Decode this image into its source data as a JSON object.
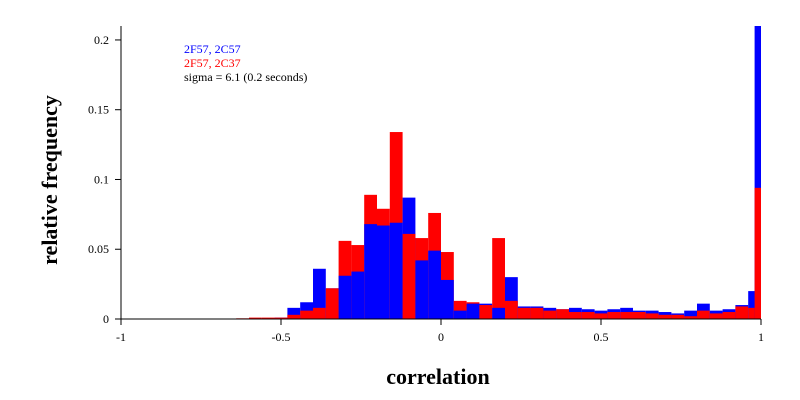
{
  "chart_data": {
    "type": "bar",
    "xlabel": "correlation",
    "ylabel": "relative frequency",
    "xlim": [
      -1,
      1
    ],
    "ylim": [
      0,
      0.21
    ],
    "xticks": [
      -1,
      -0.5,
      0,
      0.5,
      1
    ],
    "xtick_labels": [
      "-1",
      "-0.5",
      "0",
      "0.5",
      "1"
    ],
    "yticks": [
      0,
      0.05,
      0.1,
      0.15,
      0.2
    ],
    "ytick_labels": [
      "0",
      "0.05",
      "0.1",
      "0.15",
      "0.2"
    ],
    "grid": false,
    "legend_position": "top-left",
    "legend": [
      {
        "label": "2F57, 2C57",
        "color": "#0000ff"
      },
      {
        "label": "2F57, 2C37",
        "color": "#ff0000"
      }
    ],
    "annotation": "sigma = 6.1 (0.2 seconds)",
    "bin_width": 0.04,
    "bins": [
      {
        "x0": -0.64,
        "blue": 0.0,
        "red": 0.0005
      },
      {
        "x0": -0.6,
        "blue": 0.0,
        "red": 0.001
      },
      {
        "x0": -0.56,
        "blue": 0.0,
        "red": 0.001
      },
      {
        "x0": -0.52,
        "blue": 0.001,
        "red": 0.001
      },
      {
        "x0": -0.48,
        "blue": 0.008,
        "red": 0.003
      },
      {
        "x0": -0.44,
        "blue": 0.012,
        "red": 0.006
      },
      {
        "x0": -0.4,
        "blue": 0.036,
        "red": 0.008
      },
      {
        "x0": -0.36,
        "blue": 0.022,
        "red": 0.022
      },
      {
        "x0": -0.32,
        "blue": 0.031,
        "red": 0.056
      },
      {
        "x0": -0.28,
        "blue": 0.034,
        "red": 0.053
      },
      {
        "x0": -0.24,
        "blue": 0.068,
        "red": 0.089
      },
      {
        "x0": -0.2,
        "blue": 0.067,
        "red": 0.079
      },
      {
        "x0": -0.16,
        "blue": 0.069,
        "red": 0.134
      },
      {
        "x0": -0.12,
        "blue": 0.087,
        "red": 0.061
      },
      {
        "x0": -0.08,
        "blue": 0.042,
        "red": 0.058
      },
      {
        "x0": -0.04,
        "blue": 0.049,
        "red": 0.076
      },
      {
        "x0": 0.0,
        "blue": 0.028,
        "red": 0.048
      },
      {
        "x0": 0.04,
        "blue": 0.006,
        "red": 0.013
      },
      {
        "x0": 0.08,
        "blue": 0.011,
        "red": 0.012
      },
      {
        "x0": 0.12,
        "blue": 0.011,
        "red": 0.01
      },
      {
        "x0": 0.16,
        "blue": 0.008,
        "red": 0.058
      },
      {
        "x0": 0.2,
        "blue": 0.03,
        "red": 0.013
      },
      {
        "x0": 0.24,
        "blue": 0.009,
        "red": 0.008
      },
      {
        "x0": 0.28,
        "blue": 0.009,
        "red": 0.008
      },
      {
        "x0": 0.32,
        "blue": 0.008,
        "red": 0.006
      },
      {
        "x0": 0.36,
        "blue": 0.007,
        "red": 0.007
      },
      {
        "x0": 0.4,
        "blue": 0.008,
        "red": 0.005
      },
      {
        "x0": 0.44,
        "blue": 0.007,
        "red": 0.005
      },
      {
        "x0": 0.48,
        "blue": 0.006,
        "red": 0.004
      },
      {
        "x0": 0.52,
        "blue": 0.007,
        "red": 0.005
      },
      {
        "x0": 0.56,
        "blue": 0.008,
        "red": 0.005
      },
      {
        "x0": 0.6,
        "blue": 0.006,
        "red": 0.005
      },
      {
        "x0": 0.64,
        "blue": 0.006,
        "red": 0.004
      },
      {
        "x0": 0.68,
        "blue": 0.005,
        "red": 0.003
      },
      {
        "x0": 0.72,
        "blue": 0.004,
        "red": 0.003
      },
      {
        "x0": 0.76,
        "blue": 0.006,
        "red": 0.002
      },
      {
        "x0": 0.8,
        "blue": 0.011,
        "red": 0.006
      },
      {
        "x0": 0.84,
        "blue": 0.006,
        "red": 0.004
      },
      {
        "x0": 0.88,
        "blue": 0.007,
        "red": 0.005
      },
      {
        "x0": 0.92,
        "blue": 0.01,
        "red": 0.009
      },
      {
        "x0": 0.96,
        "blue": 0.02,
        "red": 0.008
      },
      {
        "x0": 0.98,
        "blue": 0.21,
        "red": 0.094
      }
    ]
  }
}
